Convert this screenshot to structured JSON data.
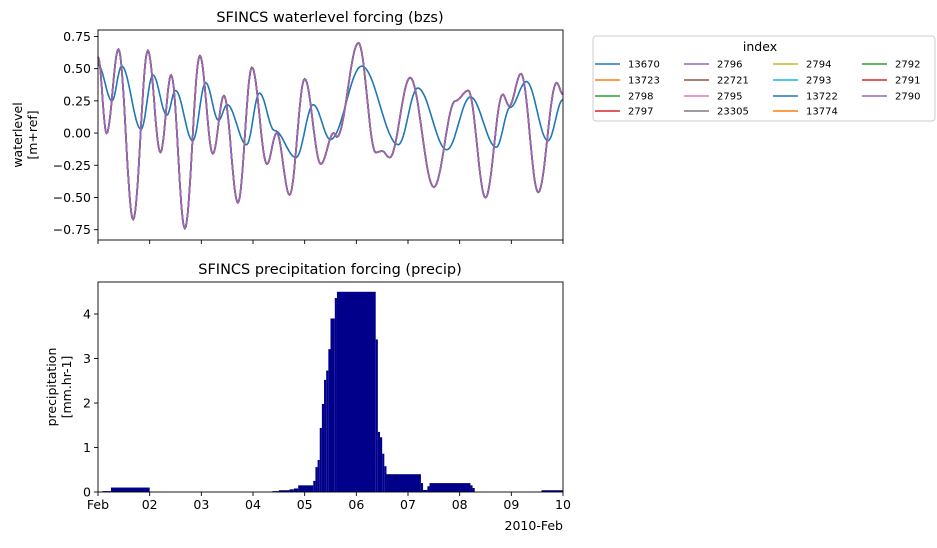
{
  "chart_data": [
    {
      "type": "line",
      "title": "SFINCS waterlevel forcing (bzs)",
      "xlabel": "",
      "ylabel": [
        "waterlevel",
        "[m+ref]"
      ],
      "xlim": [
        "2010-02-01T00:00",
        "2010-02-10T00:00"
      ],
      "ylim": [
        -0.83,
        0.8
      ],
      "yticks": [
        "0.75",
        "0.50",
        "0.25",
        "0.00",
        "−0.25",
        "−0.50",
        "−0.75"
      ],
      "ytick_values": [
        0.75,
        0.5,
        0.25,
        0,
        -0.25,
        -0.5,
        -0.75
      ],
      "grid": false,
      "legend": {
        "title": "index",
        "placement": "outside-right",
        "columns": 4
      },
      "curves": {
        "a": [
          [
            "2010-02-01T00:00",
            0.53
          ],
          [
            "2010-02-01T06:30",
            0.25
          ],
          [
            "2010-02-01T11:00",
            0.52
          ],
          [
            "2010-02-01T20:00",
            0.03
          ],
          [
            "2010-02-02T01:30",
            0.45
          ],
          [
            "2010-02-02T08:00",
            0.14
          ],
          [
            "2010-02-02T12:00",
            0.33
          ],
          [
            "2010-02-02T20:00",
            -0.06
          ],
          [
            "2010-02-03T02:00",
            0.39
          ],
          [
            "2010-02-03T08:00",
            0.1
          ],
          [
            "2010-02-03T12:00",
            0.22
          ],
          [
            "2010-02-03T21:00",
            -0.09
          ],
          [
            "2010-02-04T03:00",
            0.31
          ],
          [
            "2010-02-04T10:00",
            0.02
          ],
          [
            "2010-02-04T20:00",
            -0.19
          ],
          [
            "2010-02-05T04:00",
            0.22
          ],
          [
            "2010-02-05T12:00",
            -0.05
          ],
          [
            "2010-02-06T02:30",
            0.52
          ],
          [
            "2010-02-06T19:30",
            -0.09
          ],
          [
            "2010-02-07T04:30",
            0.35
          ],
          [
            "2010-02-07T18:00",
            -0.13
          ],
          [
            "2010-02-08T05:00",
            0.28
          ],
          [
            "2010-02-08T17:00",
            -0.11
          ],
          [
            "2010-02-08T23:30",
            0.2
          ],
          [
            "2010-02-09T07:00",
            0.4
          ],
          [
            "2010-02-09T17:00",
            -0.06
          ],
          [
            "2010-02-10T00:00",
            0.26
          ]
        ],
        "b": [
          [
            "2010-02-01T00:00",
            0.59
          ],
          [
            "2010-02-01T04:00",
            0.0
          ],
          [
            "2010-02-01T09:30",
            0.65
          ],
          [
            "2010-02-01T16:20",
            -0.67
          ],
          [
            "2010-02-01T23:10",
            0.64
          ],
          [
            "2010-02-02T05:00",
            -0.15
          ],
          [
            "2010-02-02T10:00",
            0.45
          ],
          [
            "2010-02-02T16:20",
            -0.74
          ],
          [
            "2010-02-02T23:20",
            0.6
          ],
          [
            "2010-02-03T05:20",
            -0.16
          ],
          [
            "2010-02-03T10:30",
            0.29
          ],
          [
            "2010-02-03T17:00",
            -0.54
          ],
          [
            "2010-02-03T23:30",
            0.51
          ],
          [
            "2010-02-04T06:30",
            -0.24
          ],
          [
            "2010-02-04T11:00",
            0.0
          ],
          [
            "2010-02-04T17:00",
            -0.48
          ],
          [
            "2010-02-05T00:00",
            0.42
          ],
          [
            "2010-02-05T07:30",
            -0.24
          ],
          [
            "2010-02-05T13:30",
            0.0
          ],
          [
            "2010-02-05T15:00",
            -0.03
          ],
          [
            "2010-02-06T01:00",
            0.7
          ],
          [
            "2010-02-06T09:00",
            -0.15
          ],
          [
            "2010-02-06T12:00",
            -0.14
          ],
          [
            "2010-02-06T15:30",
            -0.19
          ],
          [
            "2010-02-07T01:00",
            0.43
          ],
          [
            "2010-02-07T12:00",
            -0.42
          ],
          [
            "2010-02-07T22:00",
            0.25
          ],
          [
            "2010-02-08T04:00",
            0.33
          ],
          [
            "2010-02-08T12:00",
            -0.5
          ],
          [
            "2010-02-08T20:00",
            0.3
          ],
          [
            "2010-02-08T23:00",
            0.21
          ],
          [
            "2010-02-09T04:30",
            0.46
          ],
          [
            "2010-02-09T12:30",
            -0.46
          ],
          [
            "2010-02-09T21:00",
            0.39
          ],
          [
            "2010-02-10T00:00",
            0.3
          ]
        ]
      },
      "series": [
        {
          "name": "13670",
          "color": "#1f77b4",
          "curve": "a"
        },
        {
          "name": "13723",
          "color": "#ff7f0e",
          "curve": "b"
        },
        {
          "name": "2798",
          "color": "#2ca02c",
          "curve": "b"
        },
        {
          "name": "2797",
          "color": "#d62728",
          "curve": "b"
        },
        {
          "name": "2796",
          "color": "#9467bd",
          "curve": "b"
        },
        {
          "name": "22721",
          "color": "#8c564b",
          "curve": "b"
        },
        {
          "name": "2795",
          "color": "#e377c2",
          "curve": "b"
        },
        {
          "name": "23305",
          "color": "#7f7f7f",
          "curve": "b"
        },
        {
          "name": "2794",
          "color": "#bcbd22",
          "curve": "b"
        },
        {
          "name": "2793",
          "color": "#17becf",
          "curve": "b"
        },
        {
          "name": "13722",
          "color": "#1f77b4",
          "curve": "b"
        },
        {
          "name": "13774",
          "color": "#ff7f0e",
          "curve": "b"
        },
        {
          "name": "2792",
          "color": "#2ca02c",
          "curve": "b"
        },
        {
          "name": "2791",
          "color": "#d62728",
          "curve": "b"
        },
        {
          "name": "2790",
          "color": "#9467bd",
          "curve": "b"
        }
      ]
    },
    {
      "type": "bar",
      "title": "SFINCS precipitation forcing (precip)",
      "xlabel": "",
      "ylabel": [
        "precipitation",
        "[mm.hr-1]"
      ],
      "xlim": [
        "2010-02-01T00:00",
        "2010-02-10T00:00"
      ],
      "ylim": [
        0,
        4.72
      ],
      "yticks": [
        "0",
        "1",
        "2",
        "3",
        "4"
      ],
      "ytick_values": [
        0,
        1,
        2,
        3,
        4
      ],
      "xticks": [
        "Feb",
        "02",
        "03",
        "04",
        "05",
        "06",
        "07",
        "08",
        "09",
        "10"
      ],
      "xtick_values": [
        "2010-02-01T00:00",
        "2010-02-02T00:00",
        "2010-02-03T00:00",
        "2010-02-04T00:00",
        "2010-02-05T00:00",
        "2010-02-06T00:00",
        "2010-02-07T00:00",
        "2010-02-08T00:00",
        "2010-02-09T00:00",
        "2010-02-10T00:00"
      ],
      "x_offset_label": "2010-Feb",
      "color": "#00008b",
      "grid": false,
      "steps": [
        [
          "2010-02-01T02:00",
          "2010-02-01T06:00",
          0.02
        ],
        [
          "2010-02-01T06:00",
          "2010-02-02T00:00",
          0.1
        ],
        [
          "2010-02-04T09:00",
          "2010-02-04T12:00",
          0.02
        ],
        [
          "2010-02-04T12:00",
          "2010-02-04T17:00",
          0.04
        ],
        [
          "2010-02-04T17:00",
          "2010-02-04T19:00",
          0.06
        ],
        [
          "2010-02-04T19:00",
          "2010-02-04T21:00",
          0.08
        ],
        [
          "2010-02-04T21:00",
          "2010-02-05T04:00",
          0.15
        ],
        [
          "2010-02-05T04:00",
          "2010-02-05T05:00",
          0.25
        ],
        [
          "2010-02-05T05:00",
          "2010-02-05T06:00",
          0.56
        ],
        [
          "2010-02-05T06:00",
          "2010-02-05T07:00",
          0.72
        ],
        [
          "2010-02-05T07:00",
          "2010-02-05T08:00",
          1.44
        ],
        [
          "2010-02-05T08:00",
          "2010-02-05T09:00",
          1.98
        ],
        [
          "2010-02-05T09:00",
          "2010-02-05T10:00",
          2.52
        ],
        [
          "2010-02-05T10:00",
          "2010-02-05T11:00",
          2.73
        ],
        [
          "2010-02-05T11:00",
          "2010-02-05T12:00",
          3.21
        ],
        [
          "2010-02-05T12:00",
          "2010-02-05T14:00",
          3.9
        ],
        [
          "2010-02-05T14:00",
          "2010-02-05T15:00",
          4.36
        ],
        [
          "2010-02-05T15:00",
          "2010-02-06T09:00",
          4.5
        ],
        [
          "2010-02-06T09:00",
          "2010-02-06T10:00",
          3.43
        ],
        [
          "2010-02-06T10:00",
          "2010-02-06T11:00",
          1.35
        ],
        [
          "2010-02-06T11:00",
          "2010-02-06T12:00",
          1.23
        ],
        [
          "2010-02-06T12:00",
          "2010-02-06T13:00",
          0.86
        ],
        [
          "2010-02-06T13:00",
          "2010-02-06T14:00",
          0.58
        ],
        [
          "2010-02-06T14:00",
          "2010-02-07T06:00",
          0.4
        ],
        [
          "2010-02-07T06:00",
          "2010-02-07T07:00",
          0.2
        ],
        [
          "2010-02-07T07:00",
          "2010-02-07T09:00",
          0.045
        ],
        [
          "2010-02-07T09:00",
          "2010-02-07T10:00",
          0.13
        ],
        [
          "2010-02-07T10:00",
          "2010-02-08T05:00",
          0.2
        ],
        [
          "2010-02-08T05:00",
          "2010-02-08T06:00",
          0.15
        ],
        [
          "2010-02-08T06:00",
          "2010-02-08T07:00",
          0.09
        ],
        [
          "2010-02-09T14:00",
          "2010-02-10T00:00",
          0.04
        ]
      ]
    }
  ]
}
